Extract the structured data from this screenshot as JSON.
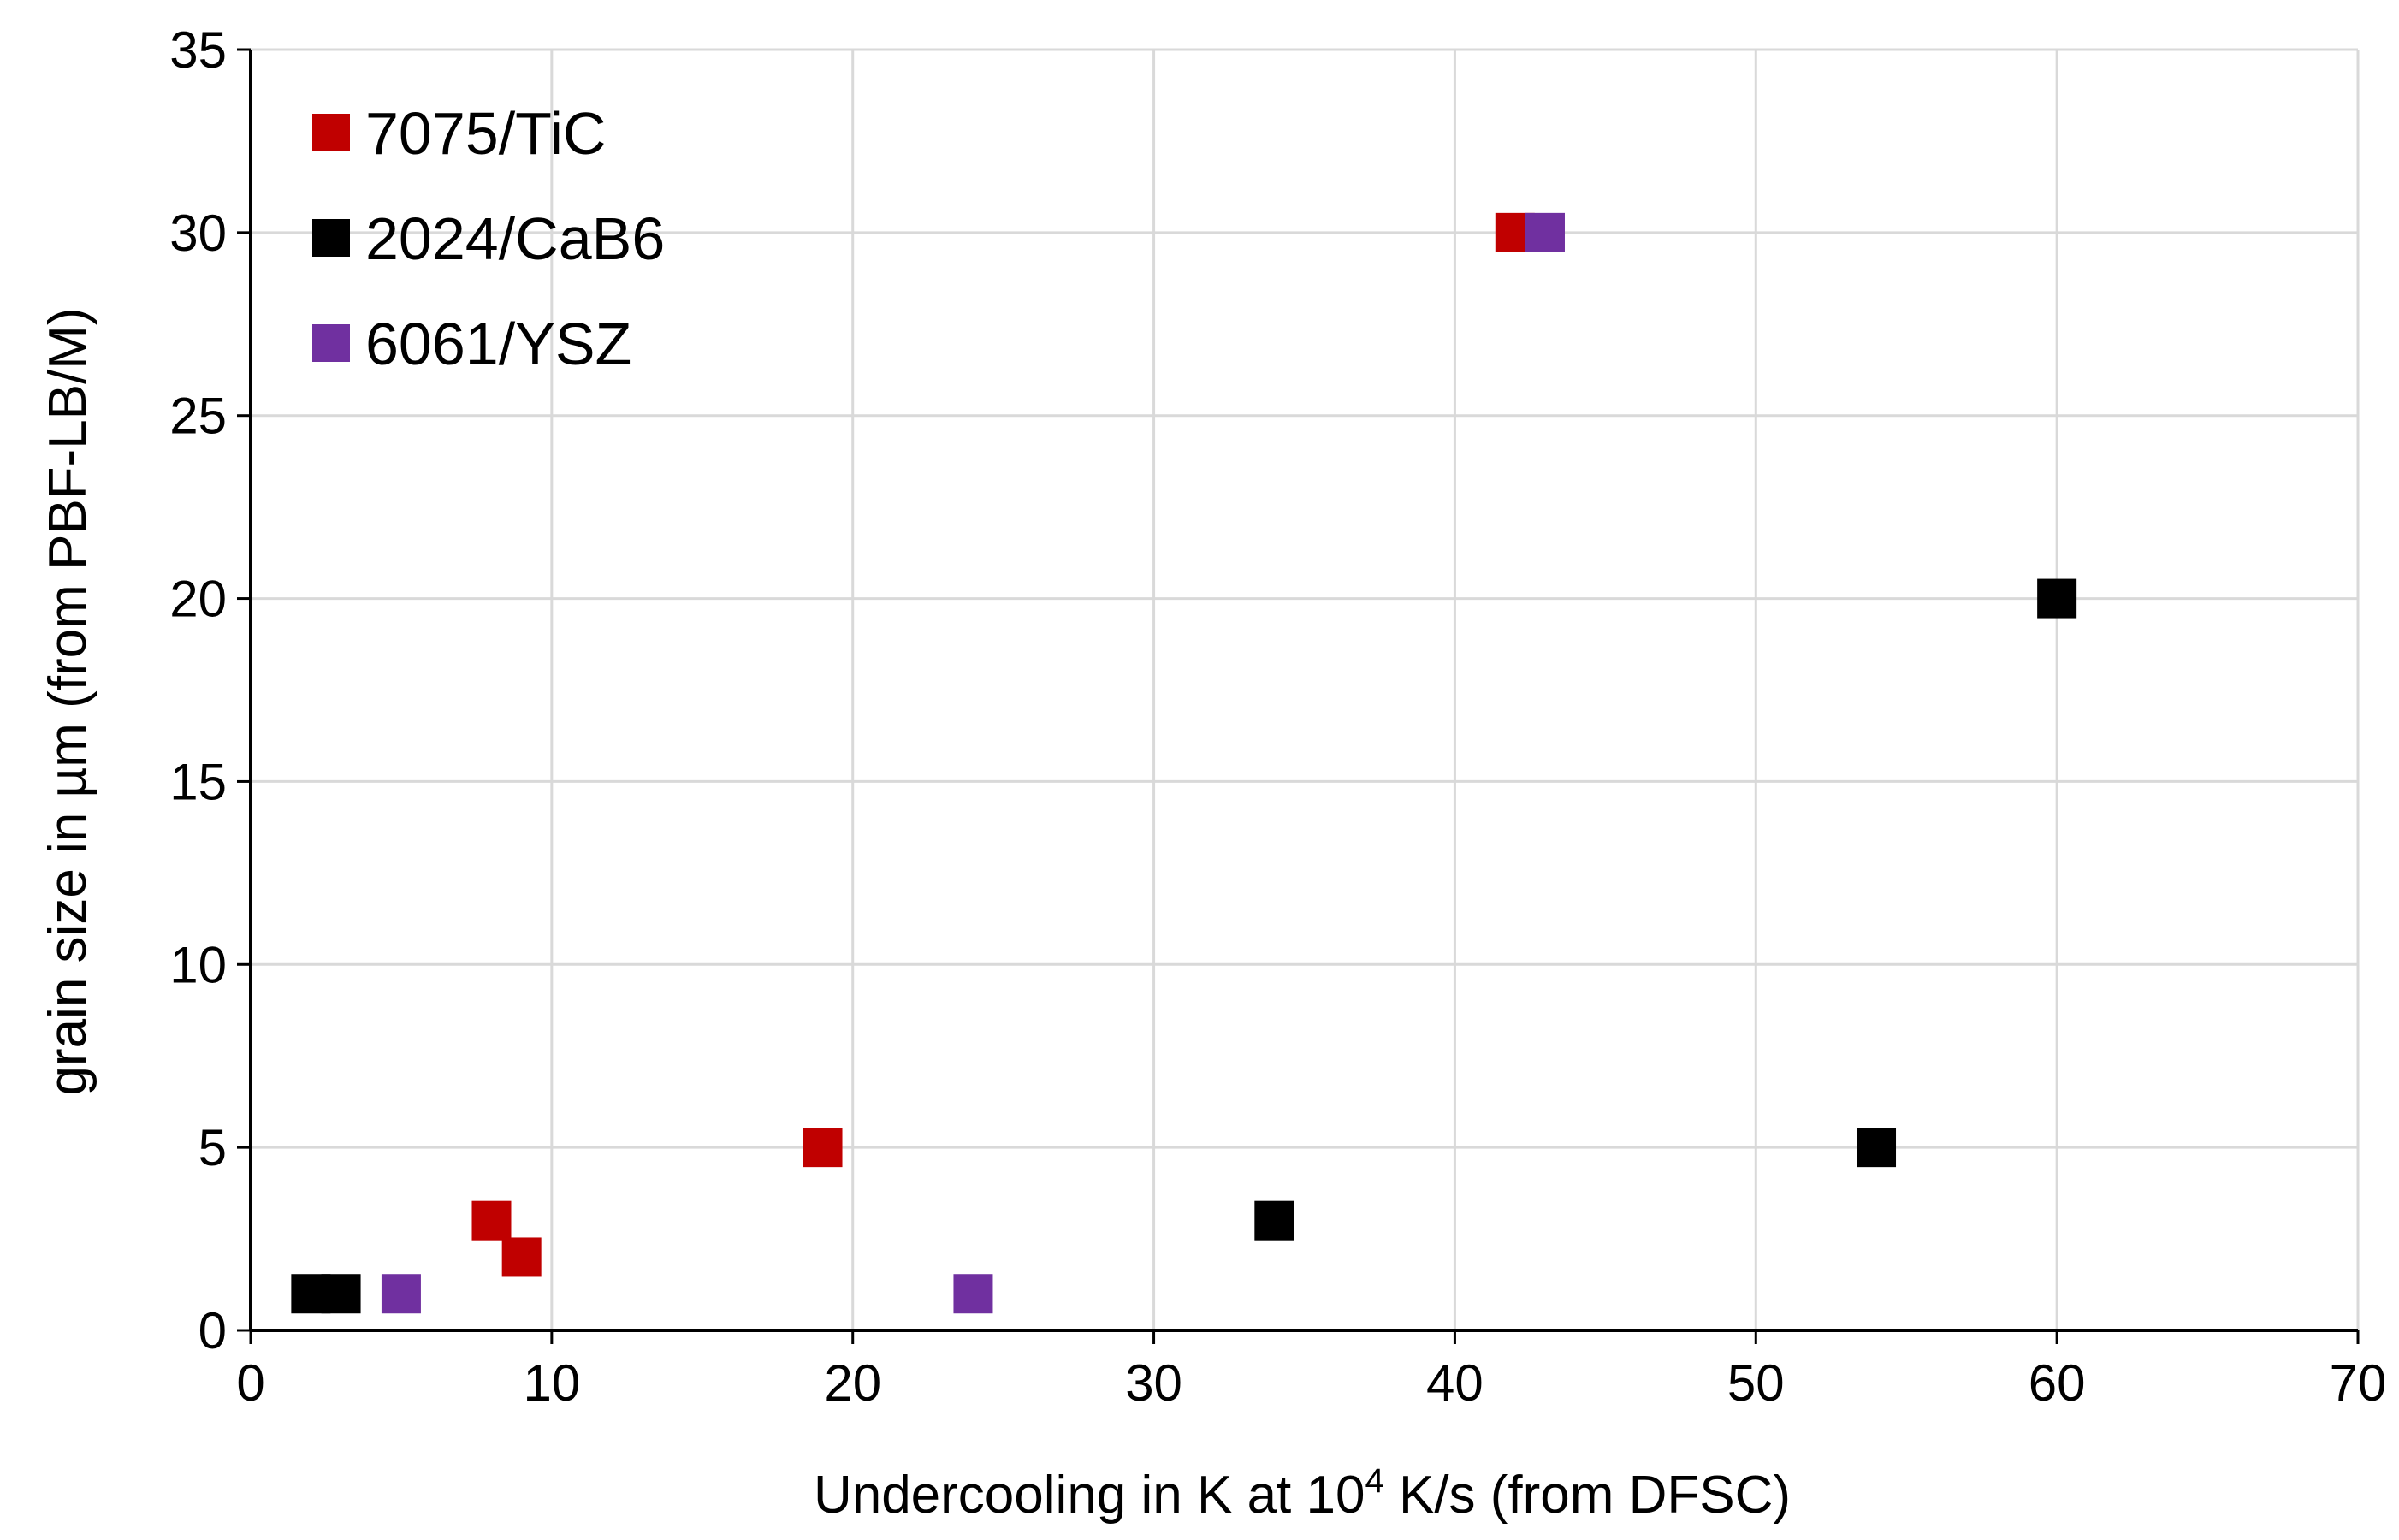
{
  "chart_data": {
    "type": "scatter",
    "title": "",
    "xlabel": {
      "main": "Undercooling in K at 10",
      "sup": "4",
      "rest": " K/s (from DFSC)"
    },
    "ylabel": "grain size in µm (from PBF-LB/M)",
    "xlim": [
      0,
      70
    ],
    "ylim": [
      0,
      35
    ],
    "xticks": [
      "0",
      "10",
      "20",
      "30",
      "40",
      "50",
      "60",
      "70"
    ],
    "yticks": [
      "0",
      "5",
      "10",
      "15",
      "20",
      "25",
      "30",
      "35"
    ],
    "grid": true,
    "legend_position": "top-left",
    "series": [
      {
        "name": "7075/TiC",
        "color": "#c00000",
        "points": [
          [
            8,
            3
          ],
          [
            9,
            2
          ],
          [
            19,
            5
          ],
          [
            42,
            30
          ]
        ]
      },
      {
        "name": "2024/CaB6",
        "color": "#000000",
        "points": [
          [
            2,
            1
          ],
          [
            3,
            1
          ],
          [
            34,
            3
          ],
          [
            54,
            5
          ],
          [
            60,
            20
          ]
        ]
      },
      {
        "name": "6061/YSZ",
        "color": "#7030a0",
        "points": [
          [
            5,
            1
          ],
          [
            24,
            1
          ],
          [
            43,
            30
          ]
        ]
      }
    ]
  }
}
